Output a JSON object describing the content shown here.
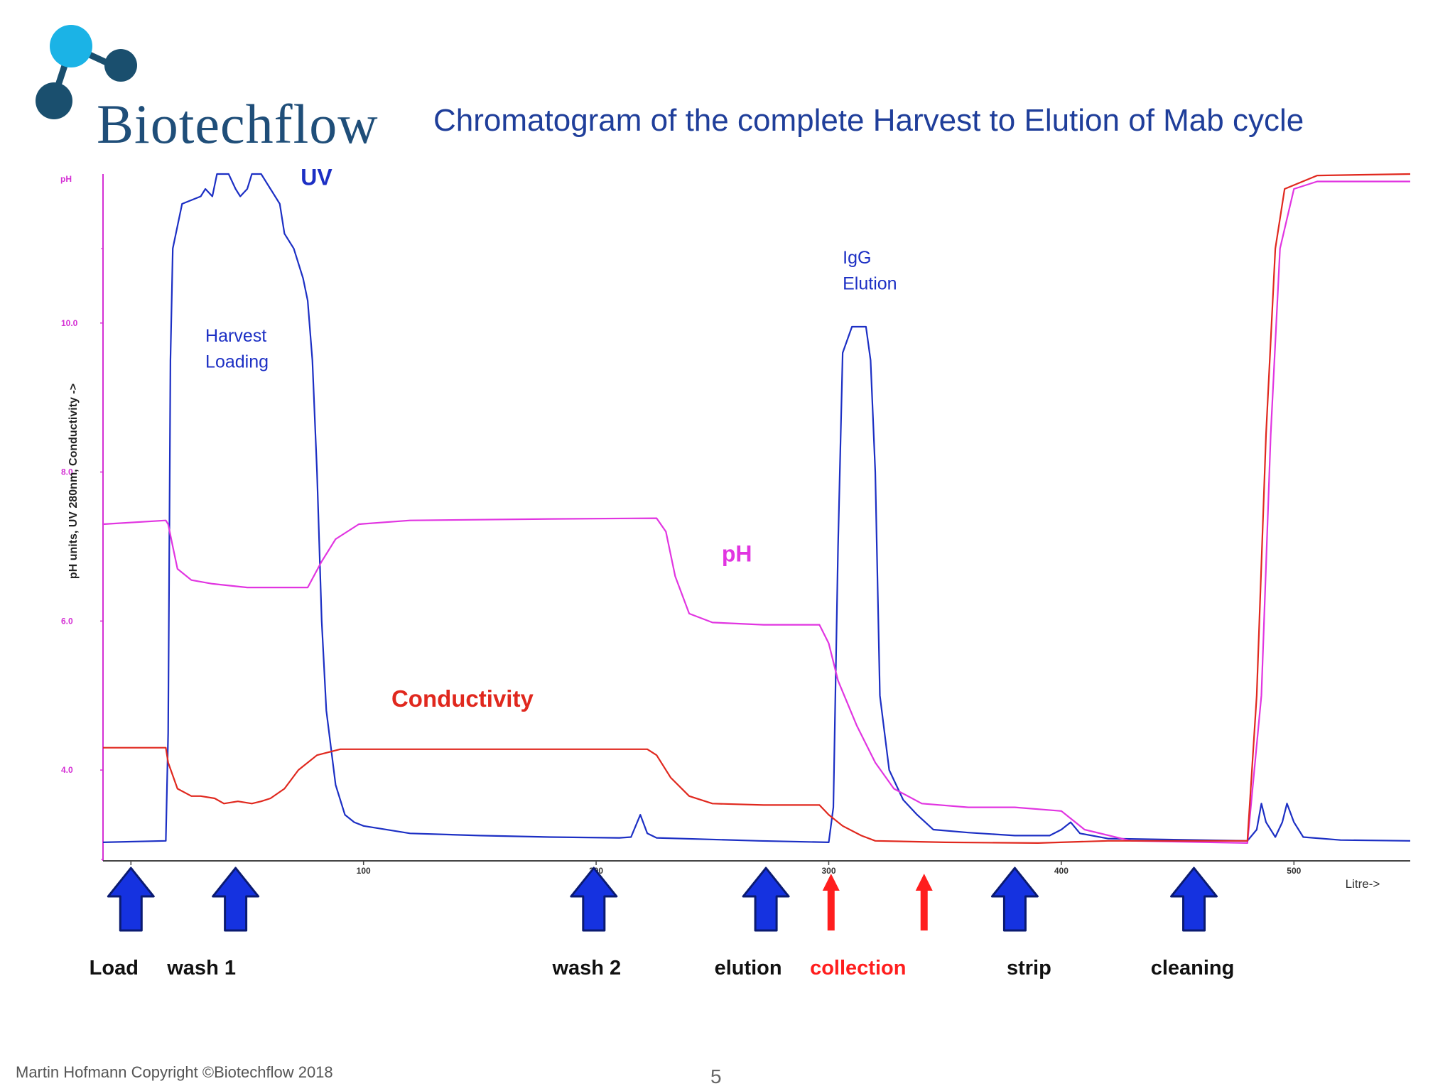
{
  "brand": {
    "name": "Biotechflow",
    "dot_light": "#1bb3e6",
    "dot_dark": "#1a4f6e"
  },
  "slide": {
    "title": "Chromatogram of the complete Harvest to Elution of Mab cycle",
    "footer": "Martin Hofmann  Copyright ©Biotechflow 2018",
    "page_number": "5"
  },
  "colors": {
    "uv": "#1c2fc4",
    "ph": "#e135e1",
    "conductivity": "#e0281e",
    "axis": "#d42fd4",
    "arrow_blue": "#1532e0",
    "arrow_red": "#ff1e1e"
  },
  "chart_data": {
    "type": "line",
    "xlabel": "Litre->",
    "ylabel": "pH units, UV 280nm, Conductivity ->",
    "y_unit_label": "pH",
    "x_ticks": [
      0,
      100,
      200,
      300,
      400,
      500
    ],
    "y_ticks": [
      4.0,
      6.0,
      8.0,
      10.0
    ],
    "y_tick_labels": [
      "4.0",
      "6.0",
      "8.0",
      "10.0"
    ],
    "xlim": [
      -12,
      550
    ],
    "ylim": [
      2.8,
      12.0
    ],
    "series": [
      {
        "name": "UV",
        "color": "#1c2fc4",
        "points": [
          [
            -12,
            3.03
          ],
          [
            15,
            3.05
          ],
          [
            16,
            4.5
          ],
          [
            17,
            9.5
          ],
          [
            18,
            11.0
          ],
          [
            22,
            11.6
          ],
          [
            30,
            11.7
          ],
          [
            32,
            11.8
          ],
          [
            35,
            11.7
          ],
          [
            37,
            12.0
          ],
          [
            42,
            12.0
          ],
          [
            45,
            11.8
          ],
          [
            47,
            11.7
          ],
          [
            50,
            11.8
          ],
          [
            52,
            12.0
          ],
          [
            56,
            12.0
          ],
          [
            60,
            11.8
          ],
          [
            64,
            11.6
          ],
          [
            66,
            11.2
          ],
          [
            70,
            11.0
          ],
          [
            74,
            10.6
          ],
          [
            76,
            10.3
          ],
          [
            78,
            9.5
          ],
          [
            80,
            8.0
          ],
          [
            82,
            6.0
          ],
          [
            84,
            4.8
          ],
          [
            88,
            3.8
          ],
          [
            92,
            3.4
          ],
          [
            96,
            3.3
          ],
          [
            100,
            3.25
          ],
          [
            120,
            3.15
          ],
          [
            150,
            3.12
          ],
          [
            180,
            3.1
          ],
          [
            210,
            3.09
          ],
          [
            215,
            3.1
          ],
          [
            219,
            3.4
          ],
          [
            222,
            3.15
          ],
          [
            226,
            3.09
          ],
          [
            270,
            3.05
          ],
          [
            300,
            3.03
          ],
          [
            302,
            3.5
          ],
          [
            304,
            7.0
          ],
          [
            306,
            9.6
          ],
          [
            310,
            9.95
          ],
          [
            316,
            9.95
          ],
          [
            318,
            9.5
          ],
          [
            320,
            8.0
          ],
          [
            322,
            5.0
          ],
          [
            326,
            4.0
          ],
          [
            332,
            3.6
          ],
          [
            338,
            3.4
          ],
          [
            345,
            3.2
          ],
          [
            360,
            3.16
          ],
          [
            380,
            3.12
          ],
          [
            395,
            3.12
          ],
          [
            400,
            3.2
          ],
          [
            404,
            3.3
          ],
          [
            408,
            3.15
          ],
          [
            420,
            3.08
          ],
          [
            480,
            3.05
          ],
          [
            484,
            3.2
          ],
          [
            486,
            3.55
          ],
          [
            488,
            3.3
          ],
          [
            492,
            3.1
          ],
          [
            495,
            3.3
          ],
          [
            497,
            3.55
          ],
          [
            500,
            3.3
          ],
          [
            504,
            3.1
          ],
          [
            520,
            3.06
          ],
          [
            550,
            3.05
          ]
        ]
      },
      {
        "name": "pH",
        "color": "#e135e1",
        "points": [
          [
            -12,
            7.3
          ],
          [
            15,
            7.35
          ],
          [
            16,
            7.3
          ],
          [
            18,
            7.0
          ],
          [
            20,
            6.7
          ],
          [
            26,
            6.55
          ],
          [
            35,
            6.5
          ],
          [
            50,
            6.45
          ],
          [
            70,
            6.45
          ],
          [
            76,
            6.45
          ],
          [
            82,
            6.8
          ],
          [
            88,
            7.1
          ],
          [
            98,
            7.3
          ],
          [
            120,
            7.35
          ],
          [
            180,
            7.37
          ],
          [
            226,
            7.38
          ],
          [
            230,
            7.2
          ],
          [
            234,
            6.6
          ],
          [
            240,
            6.1
          ],
          [
            250,
            5.98
          ],
          [
            272,
            5.95
          ],
          [
            296,
            5.95
          ],
          [
            300,
            5.7
          ],
          [
            304,
            5.2
          ],
          [
            312,
            4.6
          ],
          [
            320,
            4.1
          ],
          [
            328,
            3.75
          ],
          [
            340,
            3.55
          ],
          [
            360,
            3.5
          ],
          [
            380,
            3.5
          ],
          [
            400,
            3.45
          ],
          [
            410,
            3.2
          ],
          [
            430,
            3.05
          ],
          [
            480,
            3.02
          ],
          [
            486,
            5.0
          ],
          [
            490,
            8.5
          ],
          [
            494,
            11.0
          ],
          [
            500,
            11.8
          ],
          [
            510,
            11.9
          ],
          [
            550,
            11.9
          ]
        ]
      },
      {
        "name": "Conductivity",
        "color": "#e0281e",
        "points": [
          [
            -12,
            4.3
          ],
          [
            15,
            4.3
          ],
          [
            16,
            4.1
          ],
          [
            20,
            3.75
          ],
          [
            26,
            3.65
          ],
          [
            30,
            3.65
          ],
          [
            36,
            3.62
          ],
          [
            40,
            3.55
          ],
          [
            46,
            3.58
          ],
          [
            52,
            3.55
          ],
          [
            56,
            3.58
          ],
          [
            60,
            3.62
          ],
          [
            66,
            3.75
          ],
          [
            72,
            4.0
          ],
          [
            80,
            4.2
          ],
          [
            90,
            4.28
          ],
          [
            100,
            4.28
          ],
          [
            150,
            4.28
          ],
          [
            200,
            4.28
          ],
          [
            222,
            4.28
          ],
          [
            226,
            4.2
          ],
          [
            232,
            3.9
          ],
          [
            240,
            3.65
          ],
          [
            250,
            3.55
          ],
          [
            272,
            3.53
          ],
          [
            296,
            3.53
          ],
          [
            300,
            3.4
          ],
          [
            306,
            3.25
          ],
          [
            314,
            3.12
          ],
          [
            320,
            3.05
          ],
          [
            350,
            3.03
          ],
          [
            390,
            3.02
          ],
          [
            420,
            3.05
          ],
          [
            480,
            3.05
          ],
          [
            484,
            5.0
          ],
          [
            488,
            8.5
          ],
          [
            492,
            11.0
          ],
          [
            496,
            11.8
          ],
          [
            510,
            11.98
          ],
          [
            550,
            12.0
          ]
        ]
      }
    ],
    "annotations": [
      {
        "id": "uv",
        "text": "UV",
        "x": 73,
        "y": 11.85
      },
      {
        "id": "harvest-1",
        "text": "Harvest",
        "x": 32,
        "y": 9.75
      },
      {
        "id": "harvest-2",
        "text": "Loading",
        "x": 32,
        "y": 9.4
      },
      {
        "id": "igg-1",
        "text": "IgG",
        "x": 306,
        "y": 10.8
      },
      {
        "id": "igg-2",
        "text": "Elution",
        "x": 306,
        "y": 10.45
      },
      {
        "id": "ph",
        "text": "pH",
        "x": 254,
        "y": 6.8
      },
      {
        "id": "conductivity",
        "text": "Conductivity",
        "x": 112,
        "y": 4.85
      }
    ],
    "process_steps": [
      {
        "label": "Load",
        "x": 0,
        "arrow": "blue"
      },
      {
        "label": "wash 1",
        "x": 45,
        "arrow": "blue"
      },
      {
        "label": "wash 2",
        "x": 199,
        "arrow": "blue"
      },
      {
        "label": "elution",
        "x": 273,
        "arrow": "blue"
      },
      {
        "label": "collection",
        "x": 301,
        "arrow": "red"
      },
      {
        "label": "",
        "x": 341,
        "arrow": "red"
      },
      {
        "label": "strip",
        "x": 380,
        "arrow": "blue"
      },
      {
        "label": "cleaning",
        "x": 457,
        "arrow": "blue"
      }
    ]
  }
}
